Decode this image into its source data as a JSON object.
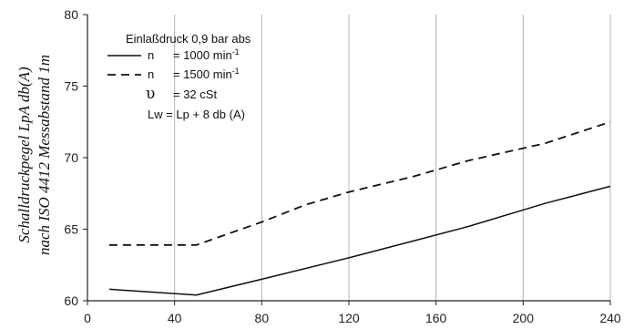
{
  "chart_data": {
    "type": "line",
    "ylabel_line1": "Schalldruckpegel LpA db(A)",
    "ylabel_line2": "nach ISO 4412 Messabstand 1m",
    "xlabel": "",
    "xlim": [
      0,
      240
    ],
    "ylim": [
      60,
      80
    ],
    "xticks": [
      0,
      40,
      80,
      120,
      160,
      200,
      240
    ],
    "yticks": [
      60,
      65,
      70,
      75,
      80
    ],
    "grid": {
      "vertical": true,
      "horizontal": false
    },
    "legend": {
      "placement": "top-left",
      "title": "Einlaßdruck 0,9 bar abs",
      "entries": [
        {
          "symbol": "n",
          "text": "= 1000 min",
          "sup": "-1",
          "style": "solid"
        },
        {
          "symbol": "n",
          "text": "= 1500 min",
          "sup": "-1",
          "style": "dashed"
        },
        {
          "symbol": "υ",
          "text": "= 32 cSt",
          "style": "none"
        },
        {
          "symbol": "",
          "text": "Lw = Lp + 8 db (A)",
          "style": "none"
        }
      ]
    },
    "series": [
      {
        "style": "solid",
        "x": [
          10,
          50,
          80,
          120,
          150,
          175,
          210,
          240
        ],
        "y": [
          60.8,
          60.4,
          61.5,
          63.0,
          64.2,
          65.2,
          66.8,
          68.0
        ]
      },
      {
        "style": "dashed",
        "x": [
          10,
          50,
          80,
          100,
          120,
          150,
          175,
          210,
          240
        ],
        "y": [
          63.9,
          63.9,
          65.5,
          66.7,
          67.6,
          68.7,
          69.8,
          71.0,
          72.5
        ]
      }
    ]
  }
}
